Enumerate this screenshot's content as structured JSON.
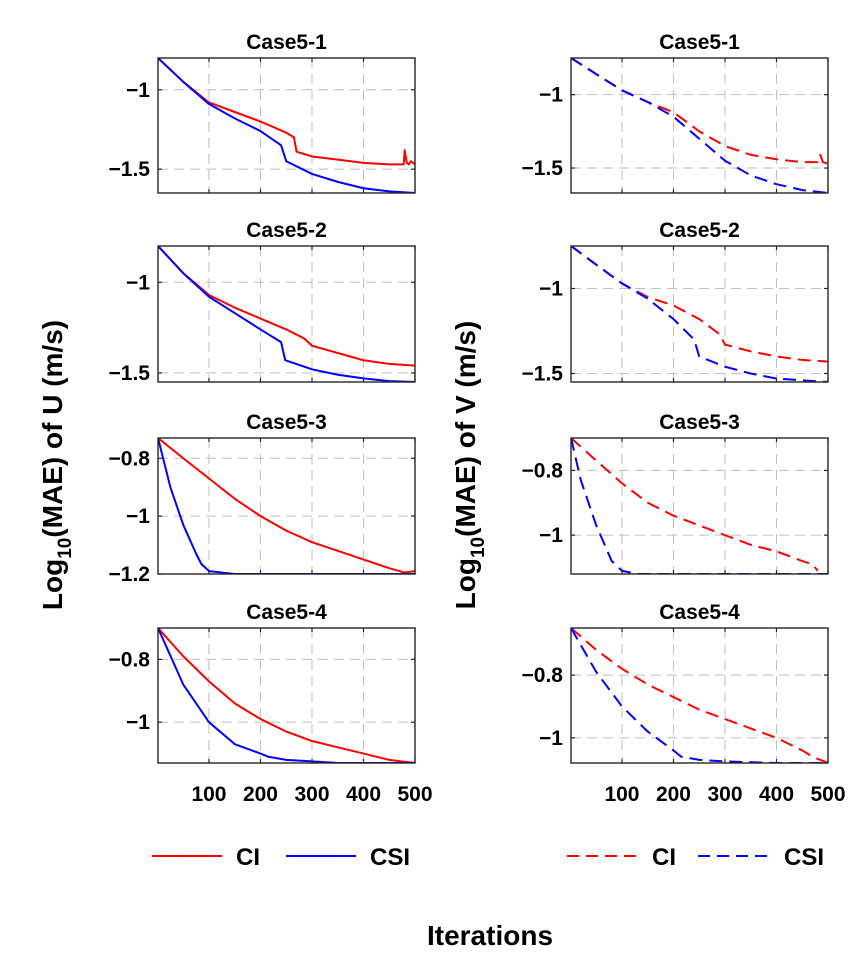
{
  "figure": {
    "left_ylabel": {
      "main": "Log",
      "sub": "10",
      "rest": "(MAE) of U (m/s)"
    },
    "right_ylabel": {
      "main": "Log",
      "sub": "10",
      "rest": "(MAE) of V (m/s)"
    },
    "xlabel": "Iterations",
    "x_ticks": [
      100,
      200,
      300,
      400,
      500
    ],
    "x_tick_labels": [
      "100",
      "200",
      "300",
      "400",
      "500"
    ],
    "legend_left": [
      {
        "label": "CI",
        "color": "#ff0000",
        "style": "solid"
      },
      {
        "label": "CSI",
        "color": "#0000ff",
        "style": "solid"
      }
    ],
    "legend_right": [
      {
        "label": "CI",
        "color": "#ff0000",
        "style": "dashed"
      },
      {
        "label": "CSI",
        "color": "#0000ff",
        "style": "dashed"
      }
    ]
  },
  "chart_data": [
    {
      "type": "line",
      "title": "Case5-1",
      "column": "U",
      "xlim": [
        1,
        500
      ],
      "ylim": [
        -1.65,
        -0.8
      ],
      "yticks": [
        -1,
        -1.5
      ],
      "ytick_labels": [
        "−1",
        "−1.5"
      ],
      "series": [
        {
          "name": "CI",
          "color": "#ff0000",
          "dash": "solid",
          "x": [
            1,
            50,
            100,
            150,
            200,
            250,
            265,
            270,
            300,
            350,
            400,
            450,
            478,
            480,
            484,
            488,
            492,
            500
          ],
          "y": [
            -0.8,
            -0.95,
            -1.08,
            -1.14,
            -1.2,
            -1.27,
            -1.3,
            -1.39,
            -1.42,
            -1.44,
            -1.46,
            -1.47,
            -1.47,
            -1.38,
            -1.46,
            -1.47,
            -1.45,
            -1.47
          ]
        },
        {
          "name": "CSI",
          "color": "#0000ff",
          "dash": "solid",
          "x": [
            1,
            50,
            100,
            150,
            200,
            240,
            250,
            300,
            350,
            400,
            450,
            500
          ],
          "y": [
            -0.8,
            -0.95,
            -1.09,
            -1.18,
            -1.26,
            -1.35,
            -1.45,
            -1.53,
            -1.58,
            -1.62,
            -1.64,
            -1.65
          ]
        }
      ]
    },
    {
      "type": "line",
      "title": "Case5-1",
      "column": "V",
      "xlim": [
        1,
        500
      ],
      "ylim": [
        -1.67,
        -0.75
      ],
      "yticks": [
        -1,
        -1.5
      ],
      "ytick_labels": [
        "−1",
        "−1.5"
      ],
      "series": [
        {
          "name": "CI",
          "color": "#ff0000",
          "dash": "dashed",
          "x": [
            1,
            50,
            100,
            150,
            200,
            250,
            300,
            350,
            400,
            450,
            480,
            485,
            490,
            500
          ],
          "y": [
            -0.75,
            -0.86,
            -0.97,
            -1.05,
            -1.12,
            -1.25,
            -1.35,
            -1.41,
            -1.44,
            -1.46,
            -1.46,
            -1.41,
            -1.46,
            -1.47
          ]
        },
        {
          "name": "CSI",
          "color": "#0000ff",
          "dash": "dashed",
          "x": [
            1,
            50,
            100,
            150,
            200,
            250,
            300,
            350,
            400,
            450,
            500
          ],
          "y": [
            -0.75,
            -0.86,
            -0.97,
            -1.05,
            -1.15,
            -1.3,
            -1.45,
            -1.55,
            -1.61,
            -1.65,
            -1.67
          ]
        }
      ]
    },
    {
      "type": "line",
      "title": "Case5-2",
      "column": "U",
      "xlim": [
        1,
        500
      ],
      "ylim": [
        -1.55,
        -0.8
      ],
      "yticks": [
        -1,
        -1.5
      ],
      "ytick_labels": [
        "−1",
        "−1.5"
      ],
      "series": [
        {
          "name": "CI",
          "color": "#ff0000",
          "dash": "solid",
          "x": [
            1,
            50,
            100,
            150,
            200,
            250,
            285,
            300,
            350,
            400,
            450,
            500
          ],
          "y": [
            -0.8,
            -0.95,
            -1.07,
            -1.14,
            -1.2,
            -1.26,
            -1.31,
            -1.35,
            -1.39,
            -1.43,
            -1.45,
            -1.46
          ]
        },
        {
          "name": "CSI",
          "color": "#0000ff",
          "dash": "solid",
          "x": [
            1,
            50,
            100,
            150,
            200,
            240,
            248,
            300,
            350,
            400,
            450,
            500
          ],
          "y": [
            -0.8,
            -0.95,
            -1.08,
            -1.17,
            -1.26,
            -1.33,
            -1.43,
            -1.48,
            -1.51,
            -1.53,
            -1.545,
            -1.55
          ]
        }
      ]
    },
    {
      "type": "line",
      "title": "Case5-2",
      "column": "V",
      "xlim": [
        1,
        500
      ],
      "ylim": [
        -1.55,
        -0.75
      ],
      "yticks": [
        -1,
        -1.5
      ],
      "ytick_labels": [
        "−1",
        "−1.5"
      ],
      "series": [
        {
          "name": "CI",
          "color": "#ff0000",
          "dash": "dashed",
          "x": [
            1,
            50,
            100,
            150,
            200,
            250,
            290,
            300,
            350,
            400,
            450,
            500
          ],
          "y": [
            -0.75,
            -0.86,
            -0.97,
            -1.05,
            -1.1,
            -1.18,
            -1.27,
            -1.33,
            -1.37,
            -1.4,
            -1.42,
            -1.43
          ]
        },
        {
          "name": "CSI",
          "color": "#0000ff",
          "dash": "dashed",
          "x": [
            1,
            50,
            100,
            150,
            200,
            240,
            250,
            300,
            350,
            400,
            450,
            500
          ],
          "y": [
            -0.75,
            -0.86,
            -0.97,
            -1.06,
            -1.18,
            -1.3,
            -1.4,
            -1.46,
            -1.5,
            -1.53,
            -1.54,
            -1.55
          ]
        }
      ]
    },
    {
      "type": "line",
      "title": "Case5-3",
      "column": "U",
      "xlim": [
        1,
        500
      ],
      "ylim": [
        -1.2,
        -0.73
      ],
      "yticks": [
        -0.8,
        -1,
        -1.2
      ],
      "ytick_labels": [
        "−0.8",
        "−1",
        "−1.2"
      ],
      "series": [
        {
          "name": "CI",
          "color": "#ff0000",
          "dash": "solid",
          "x": [
            1,
            50,
            100,
            150,
            200,
            250,
            300,
            350,
            400,
            450,
            480,
            500
          ],
          "y": [
            -0.73,
            -0.8,
            -0.87,
            -0.94,
            -1.0,
            -1.05,
            -1.09,
            -1.12,
            -1.15,
            -1.18,
            -1.195,
            -1.19
          ]
        },
        {
          "name": "CSI",
          "color": "#0000ff",
          "dash": "solid",
          "x": [
            1,
            25,
            50,
            75,
            85,
            100,
            150,
            200,
            300,
            400,
            500
          ],
          "y": [
            -0.73,
            -0.9,
            -1.03,
            -1.13,
            -1.165,
            -1.19,
            -1.2,
            -1.2,
            -1.2,
            -1.2,
            -1.2
          ]
        }
      ]
    },
    {
      "type": "line",
      "title": "Case5-3",
      "column": "V",
      "xlim": [
        1,
        500
      ],
      "ylim": [
        -1.12,
        -0.7
      ],
      "yticks": [
        -0.8,
        -1
      ],
      "ytick_labels": [
        "−0.8",
        "−1"
      ],
      "series": [
        {
          "name": "CI",
          "color": "#ff0000",
          "dash": "dashed",
          "x": [
            1,
            50,
            100,
            150,
            200,
            250,
            300,
            350,
            400,
            450,
            470,
            480
          ],
          "y": [
            -0.7,
            -0.77,
            -0.84,
            -0.9,
            -0.94,
            -0.97,
            -1.0,
            -1.03,
            -1.05,
            -1.08,
            -1.09,
            -1.11
          ]
        },
        {
          "name": "CSI",
          "color": "#0000ff",
          "dash": "dashed",
          "x": [
            1,
            20,
            50,
            80,
            100,
            130,
            200,
            300,
            400,
            500
          ],
          "y": [
            -0.7,
            -0.83,
            -0.97,
            -1.08,
            -1.11,
            -1.12,
            -1.12,
            -1.12,
            -1.12,
            -1.12
          ]
        }
      ]
    },
    {
      "type": "line",
      "title": "Case5-4",
      "column": "U",
      "xlim": [
        1,
        500
      ],
      "ylim": [
        -1.13,
        -0.7
      ],
      "yticks": [
        -0.8,
        -1
      ],
      "ytick_labels": [
        "−0.8",
        "−1"
      ],
      "series": [
        {
          "name": "CI",
          "color": "#ff0000",
          "dash": "solid",
          "x": [
            1,
            50,
            100,
            150,
            200,
            250,
            300,
            350,
            400,
            450,
            500
          ],
          "y": [
            -0.7,
            -0.79,
            -0.87,
            -0.94,
            -0.99,
            -1.03,
            -1.06,
            -1.08,
            -1.1,
            -1.12,
            -1.13
          ]
        },
        {
          "name": "CSI",
          "color": "#0000ff",
          "dash": "solid",
          "x": [
            1,
            50,
            100,
            150,
            200,
            215,
            250,
            300,
            350,
            400,
            500
          ],
          "y": [
            -0.7,
            -0.88,
            -1.0,
            -1.07,
            -1.1,
            -1.11,
            -1.12,
            -1.125,
            -1.13,
            -1.13,
            -1.13
          ]
        }
      ]
    },
    {
      "type": "line",
      "title": "Case5-4",
      "column": "V",
      "xlim": [
        1,
        500
      ],
      "ylim": [
        -1.08,
        -0.65
      ],
      "yticks": [
        -0.8,
        -1
      ],
      "ytick_labels": [
        "−0.8",
        "−1"
      ],
      "series": [
        {
          "name": "CI",
          "color": "#ff0000",
          "dash": "dashed",
          "x": [
            1,
            50,
            100,
            150,
            200,
            250,
            300,
            350,
            400,
            450,
            470,
            500
          ],
          "y": [
            -0.65,
            -0.72,
            -0.78,
            -0.83,
            -0.87,
            -0.91,
            -0.94,
            -0.97,
            -1.0,
            -1.04,
            -1.06,
            -1.08
          ]
        },
        {
          "name": "CSI",
          "color": "#0000ff",
          "dash": "dashed",
          "x": [
            1,
            50,
            100,
            150,
            200,
            215,
            250,
            300,
            400,
            500
          ],
          "y": [
            -0.65,
            -0.79,
            -0.9,
            -0.98,
            -1.04,
            -1.06,
            -1.07,
            -1.075,
            -1.08,
            -1.08
          ]
        }
      ]
    }
  ]
}
